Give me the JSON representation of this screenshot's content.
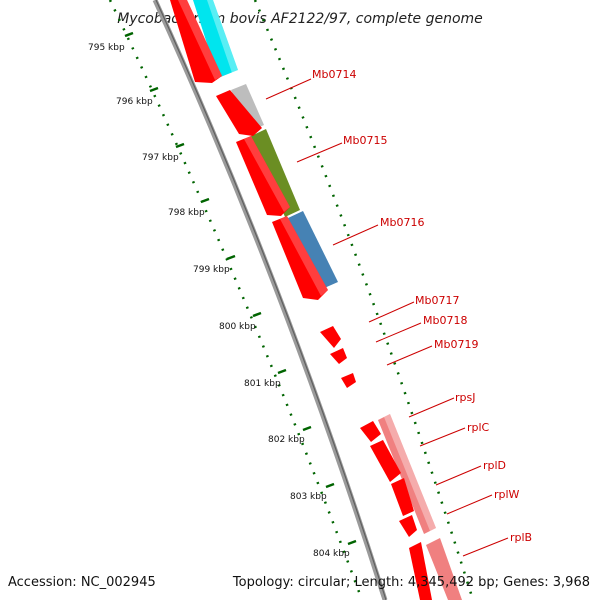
{
  "title": "Mycobacterium bovis AF2122/97, complete genome",
  "footer": {
    "accession": "Accession: NC_002945",
    "summary": "Topology: circular; Length: 4,345,492 bp; Genes: 3,968"
  },
  "kbp_ticks": [
    "795 kbp",
    "796 kbp",
    "797 kbp",
    "798 kbp",
    "799 kbp",
    "800 kbp",
    "801 kbp",
    "802 kbp",
    "803 kbp",
    "804 kbp"
  ],
  "gene_labels": [
    "Mb0714",
    "Mb0715",
    "Mb0716",
    "Mb0717",
    "Mb0718",
    "Mb0719",
    "rpsJ",
    "rplC",
    "rplD",
    "rplW",
    "rplB"
  ],
  "colors": {
    "cds": "#ff0000",
    "label": "#cc0000",
    "backbone": "#808080",
    "tick": "#006400",
    "cyan": "#00e5ee",
    "gray": "#bdbdbd",
    "olive": "#6b8e23",
    "steelblue": "#4682b4",
    "salmon": "#f08080"
  }
}
